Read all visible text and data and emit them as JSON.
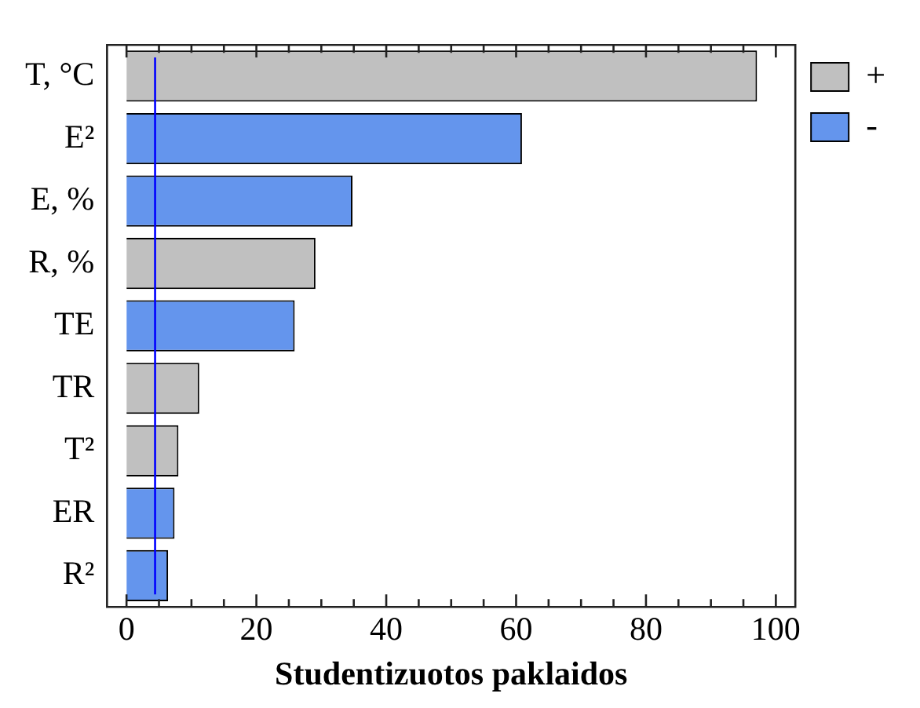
{
  "chart_data": {
    "type": "bar",
    "orientation": "horizontal",
    "xlabel": "Studentizuotos paklaidos",
    "categories": [
      "T, °C",
      "E²",
      "E, %",
      "R, %",
      "TE",
      "TR",
      "T²",
      "ER",
      "R²"
    ],
    "series": [
      {
        "name": "+",
        "color": "#c0c0c0",
        "values": [
          97.1,
          null,
          null,
          29.1,
          null,
          11.2,
          8.0,
          null,
          null
        ]
      },
      {
        "name": "-",
        "color": "#6495ed",
        "values": [
          null,
          60.9,
          34.8,
          null,
          25.9,
          null,
          null,
          7.4,
          6.4
        ]
      }
    ],
    "xlim": [
      -3,
      103
    ],
    "xticks": [
      0,
      {
        "value": 5,
        "label": null
      },
      20,
      {
        "value": 10,
        "label": null
      },
      {
        "value": 15,
        "label": null
      },
      {
        "value": 25,
        "label": null
      },
      {
        "value": 30,
        "label": null
      },
      {
        "value": 35,
        "label": null
      },
      40,
      {
        "value": 45,
        "label": null
      },
      {
        "value": 50,
        "label": null
      },
      {
        "value": 55,
        "label": null
      },
      60,
      {
        "value": 65,
        "label": null
      },
      {
        "value": 70,
        "label": null
      },
      {
        "value": 75,
        "label": null
      },
      80,
      {
        "value": 85,
        "label": null
      },
      {
        "value": 90,
        "label": null
      },
      {
        "value": 95,
        "label": null
      },
      100
    ],
    "ref_lines": [
      {
        "axis": "x",
        "value": 4.4,
        "color": "#0000ff"
      }
    ],
    "grid": false,
    "legend": "top right"
  }
}
